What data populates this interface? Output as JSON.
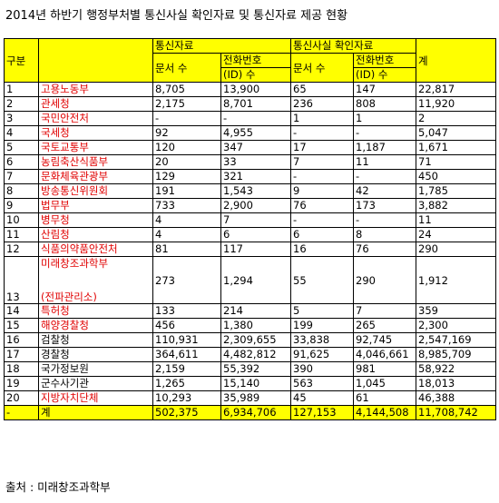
{
  "title": "2014년 하반기 행정부처별 통신사실 확인자료 및 통신자료 제공 현황",
  "headers": {
    "gubun": "구분",
    "group1": "통신자료",
    "group2": "통신사실 확인자료",
    "docs": "문서 수",
    "phone_line1": "전화번호",
    "phone_line2": "(ID) 수",
    "total": "계"
  },
  "rows": [
    {
      "no": "1",
      "agency": "고용노동부",
      "c1": "8,705",
      "c2": "13,900",
      "c3": "65",
      "c4": "147",
      "c5": "22,817"
    },
    {
      "no": "2",
      "agency": "관세청",
      "c1": "2,175",
      "c2": "8,701",
      "c3": "236",
      "c4": "808",
      "c5": "11,920"
    },
    {
      "no": "3",
      "agency": "국민안전처",
      "c1": "-",
      "c2": "-",
      "c3": "1",
      "c4": "1",
      "c5": "2"
    },
    {
      "no": "4",
      "agency": "국세청",
      "c1": "92",
      "c2": "4,955",
      "c3": "-",
      "c4": "-",
      "c5": "5,047"
    },
    {
      "no": "5",
      "agency": "국토교통부",
      "c1": "120",
      "c2": "347",
      "c3": "17",
      "c4": "1,187",
      "c5": "1,671"
    },
    {
      "no": "6",
      "agency": "농림축산식품부",
      "c1": "20",
      "c2": "33",
      "c3": "7",
      "c4": "11",
      "c5": "71"
    },
    {
      "no": "7",
      "agency": "문화체육관광부",
      "c1": "129",
      "c2": "321",
      "c3": "-",
      "c4": "-",
      "c5": "450"
    },
    {
      "no": "8",
      "agency": "방송통신위원회",
      "c1": "191",
      "c2": "1,543",
      "c3": "9",
      "c4": "42",
      "c5": "1,785"
    },
    {
      "no": "9",
      "agency": "법무부",
      "c1": "733",
      "c2": "2,900",
      "c3": "76",
      "c4": "173",
      "c5": "3,882"
    },
    {
      "no": "10",
      "agency": "병무청",
      "c1": "4",
      "c2": "7",
      "c3": "-",
      "c4": "-",
      "c5": "11"
    },
    {
      "no": "11",
      "agency": "산림청",
      "c1": "4",
      "c2": "6",
      "c3": "6",
      "c4": "8",
      "c5": "24"
    },
    {
      "no": "12",
      "agency": "식품의약품안전처",
      "c1": "81",
      "c2": "117",
      "c3": "16",
      "c4": "76",
      "c5": "290"
    }
  ],
  "row13": {
    "no": "13",
    "agency1": "미래창조과학부",
    "agency2": "(전파관리소)",
    "c1": "273",
    "c2": "1,294",
    "c3": "55",
    "c4": "290",
    "c5": "1,912"
  },
  "rows_b": [
    {
      "no": "14",
      "agency": "특허청",
      "red": true,
      "c1": "133",
      "c2": "214",
      "c3": "5",
      "c4": "7",
      "c5": "359"
    },
    {
      "no": "15",
      "agency": "해양경찰청",
      "red": true,
      "c1": "456",
      "c2": "1,380",
      "c3": "199",
      "c4": "265",
      "c5": "2,300"
    },
    {
      "no": "16",
      "agency": "검찰청",
      "red": false,
      "c1": "110,931",
      "c2": "2,309,655",
      "c3": "33,838",
      "c4": "92,745",
      "c5": "2,547,169"
    },
    {
      "no": "17",
      "agency": "경찰청",
      "red": false,
      "c1": "364,611",
      "c2": "4,482,812",
      "c3": "91,625",
      "c4": "4,046,661",
      "c5": "8,985,709"
    },
    {
      "no": "18",
      "agency": "국가정보원",
      "red": false,
      "c1": "2,159",
      "c2": "55,392",
      "c3": "390",
      "c4": "981",
      "c5": "58,922"
    },
    {
      "no": "19",
      "agency": "군수사기관",
      "red": false,
      "c1": "1,265",
      "c2": "15,140",
      "c3": "563",
      "c4": "1,045",
      "c5": "18,013"
    },
    {
      "no": "20",
      "agency": "지방자치단체",
      "red": true,
      "c1": "10,293",
      "c2": "35,989",
      "c3": "45",
      "c4": "61",
      "c5": "46,388"
    }
  ],
  "total_row": {
    "no": "-",
    "agency": "계",
    "c1": "502,375",
    "c2": "6,934,706",
    "c3": "127,153",
    "c4": "4,144,508",
    "c5": "11,708,742"
  },
  "source": "출처 : 미래창조과학부"
}
